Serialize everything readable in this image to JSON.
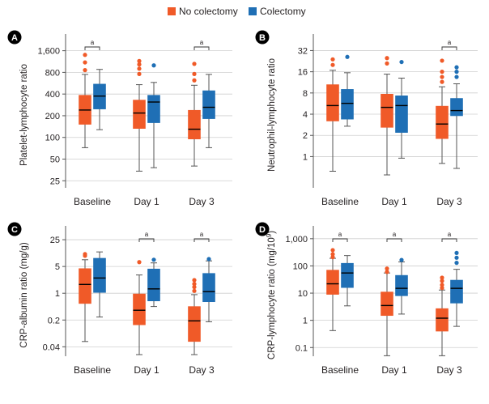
{
  "legend": {
    "items": [
      {
        "label": "No colectomy",
        "color": "#f05a28"
      },
      {
        "label": "Colectomy",
        "color": "#1f6fb5"
      }
    ]
  },
  "chart_data": [
    {
      "type": "boxplot",
      "letter": "A",
      "ylabel": "Platelet-lymphocyte ratio",
      "scale": "log",
      "ylim": [
        21,
        2000
      ],
      "yticks": [
        25,
        50,
        100,
        200,
        400,
        800,
        1600
      ],
      "ytick_labels": [
        "25",
        "50",
        "100",
        "200",
        "400",
        "800",
        "1,600"
      ],
      "categories": [
        "Baseline",
        "Day 1",
        "Day 3"
      ],
      "significance": [
        "a",
        "",
        "a"
      ],
      "series": [
        {
          "name": "No colectomy",
          "color": "#f05a28",
          "boxes": [
            {
              "whisker_low": 72,
              "q1": 152,
              "median": 240,
              "q3": 385,
              "whisker_high": 750,
              "outliers": [
                860,
                1100,
                1400
              ]
            },
            {
              "whisker_low": 34,
              "q1": 133,
              "median": 218,
              "q3": 330,
              "whisker_high": 540,
              "outliers": [
                760,
                900,
                1030,
                1150
              ]
            },
            {
              "whisker_low": 40,
              "q1": 95,
              "median": 130,
              "q3": 238,
              "whisker_high": 530,
              "outliers": [
                620,
                760,
                1050
              ]
            }
          ]
        },
        {
          "name": "Colectomy",
          "color": "#1f6fb5",
          "boxes": [
            {
              "whisker_low": 128,
              "q1": 248,
              "median": 375,
              "q3": 550,
              "whisker_high": 880,
              "outliers": []
            },
            {
              "whisker_low": 38,
              "q1": 160,
              "median": 310,
              "q3": 385,
              "whisker_high": 580,
              "outliers": [
                1000
              ]
            },
            {
              "whisker_low": 72,
              "q1": 182,
              "median": 262,
              "q3": 445,
              "whisker_high": 750,
              "outliers": []
            }
          ]
        }
      ]
    },
    {
      "type": "boxplot",
      "letter": "B",
      "ylabel": "Neutrophil-lymphocyte ratio",
      "scale": "log",
      "ylim": [
        0.38,
        40
      ],
      "yticks": [
        1,
        2,
        4,
        8,
        16,
        32
      ],
      "ytick_labels": [
        "1",
        "2",
        "4",
        "8",
        "16",
        "32"
      ],
      "categories": [
        "Baseline",
        "Day 1",
        "Day 3"
      ],
      "significance": [
        "",
        "",
        "a"
      ],
      "series": [
        {
          "name": "No colectomy",
          "color": "#f05a28",
          "boxes": [
            {
              "whisker_low": 0.62,
              "q1": 3.2,
              "median": 5.3,
              "q3": 10.5,
              "whisker_high": 16.8,
              "outliers": [
                20,
                24
              ]
            },
            {
              "whisker_low": 0.55,
              "q1": 2.6,
              "median": 5.0,
              "q3": 7.7,
              "whisker_high": 14.8,
              "outliers": [
                21,
                25
              ]
            },
            {
              "whisker_low": 0.8,
              "q1": 1.8,
              "median": 2.9,
              "q3": 5.2,
              "whisker_high": 9.8,
              "outliers": [
                11.5,
                13.5,
                16,
                23
              ]
            }
          ]
        },
        {
          "name": "Colectomy",
          "color": "#1f6fb5",
          "boxes": [
            {
              "whisker_low": 2.7,
              "q1": 3.4,
              "median": 5.7,
              "q3": 9.0,
              "whisker_high": 15.5,
              "outliers": [
                26
              ]
            },
            {
              "whisker_low": 0.95,
              "q1": 2.2,
              "median": 5.3,
              "q3": 7.3,
              "whisker_high": 13,
              "outliers": [
                22
              ]
            },
            {
              "whisker_low": 0.68,
              "q1": 3.8,
              "median": 4.5,
              "q3": 6.7,
              "whisker_high": 10.8,
              "outliers": [
                13.5,
                16,
                18.5
              ]
            }
          ]
        }
      ]
    },
    {
      "type": "boxplot",
      "letter": "C",
      "ylabel": "CRP-albumin ratio (mg/g)",
      "scale": "log",
      "ylim": [
        0.025,
        32
      ],
      "yticks": [
        0.04,
        0.2,
        1,
        5,
        25
      ],
      "ytick_labels": [
        "0.04",
        "0.2",
        "1",
        "5",
        "25"
      ],
      "categories": [
        "Baseline",
        "Day 1",
        "Day 3"
      ],
      "significance": [
        "",
        "a",
        "a"
      ],
      "series": [
        {
          "name": "No colectomy",
          "color": "#f05a28",
          "boxes": [
            {
              "whisker_low": 0.055,
              "q1": 0.54,
              "median": 1.7,
              "q3": 4.4,
              "whisker_high": 7.5,
              "outliers": [
                9.5,
                10.5
              ]
            },
            {
              "whisker_low": 0.025,
              "q1": 0.15,
              "median": 0.36,
              "q3": 0.96,
              "whisker_high": 3.0,
              "outliers": [
                6.5
              ]
            },
            {
              "whisker_low": 0.025,
              "q1": 0.055,
              "median": 0.19,
              "q3": 0.45,
              "whisker_high": 0.92,
              "outliers": [
                1.15,
                1.45,
                1.75,
                2.2
              ]
            }
          ]
        },
        {
          "name": "Colectomy",
          "color": "#1f6fb5",
          "boxes": [
            {
              "whisker_low": 0.24,
              "q1": 1.05,
              "median": 2.5,
              "q3": 8.2,
              "whisker_high": 12,
              "outliers": []
            },
            {
              "whisker_low": 0.45,
              "q1": 0.63,
              "median": 1.3,
              "q3": 4.3,
              "whisker_high": 6.2,
              "outliers": [
                7.5
              ]
            },
            {
              "whisker_low": 0.18,
              "q1": 0.6,
              "median": 1.1,
              "q3": 3.3,
              "whisker_high": 7.0,
              "outliers": [
                7.8
              ]
            }
          ]
        }
      ]
    },
    {
      "type": "boxplot",
      "letter": "D",
      "ylabel": "CRP-lymphocyte ratio (mg/10",
      "ylabel_sup": "9",
      "ylabel_end": ")",
      "scale": "log",
      "ylim": [
        0.055,
        1300
      ],
      "yticks": [
        0.1,
        1,
        10,
        100,
        1000
      ],
      "ytick_labels": [
        "0.1",
        "1",
        "10",
        "100",
        "1,000"
      ],
      "categories": [
        "Baseline",
        "Day 1",
        "Day 3"
      ],
      "significance": [
        "a",
        "a",
        "a"
      ],
      "series": [
        {
          "name": "No colectomy",
          "color": "#f05a28",
          "boxes": [
            {
              "whisker_low": 0.42,
              "q1": 9,
              "median": 22,
              "q3": 70,
              "whisker_high": 190,
              "outliers": [
                210,
                270,
                380
              ]
            },
            {
              "whisker_low": 0.05,
              "q1": 1.5,
              "median": 3.5,
              "q3": 11,
              "whisker_high": 55,
              "outliers": [
                60,
                80
              ]
            },
            {
              "whisker_low": 0.05,
              "q1": 0.4,
              "median": 1.2,
              "q3": 2.7,
              "whisker_high": 13,
              "outliers": [
                15.5,
                20,
                28,
                37
              ]
            }
          ]
        },
        {
          "name": "Colectomy",
          "color": "#1f6fb5",
          "boxes": [
            {
              "whisker_low": 3.4,
              "q1": 16,
              "median": 55,
              "q3": 125,
              "whisker_high": 240,
              "outliers": []
            },
            {
              "whisker_low": 1.7,
              "q1": 8,
              "median": 15,
              "q3": 45,
              "whisker_high": 140,
              "outliers": [
                165
              ]
            },
            {
              "whisker_low": 0.6,
              "q1": 4.3,
              "median": 15,
              "q3": 30,
              "whisker_high": 75,
              "outliers": [
                130,
                200,
                300
              ]
            }
          ]
        }
      ]
    }
  ]
}
